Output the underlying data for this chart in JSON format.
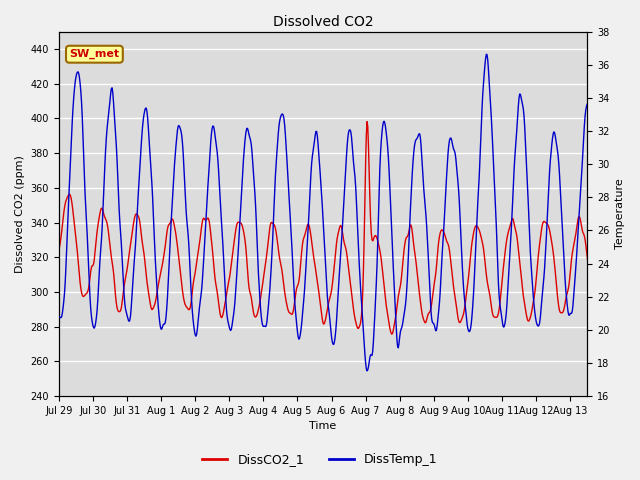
{
  "title": "Dissolved CO2",
  "xlabel": "Time",
  "ylabel_left": "Dissolved CO2 (ppm)",
  "ylabel_right": "Temperature",
  "ylim_left": [
    240,
    450
  ],
  "ylim_right": [
    16,
    38
  ],
  "yticks_left": [
    240,
    260,
    280,
    300,
    320,
    340,
    360,
    380,
    400,
    420,
    440
  ],
  "yticks_right": [
    16,
    18,
    20,
    22,
    24,
    26,
    28,
    30,
    32,
    34,
    36,
    38
  ],
  "xtick_labels": [
    "Jul 29",
    "Jul 30",
    "Jul 31",
    "Aug 1",
    "Aug 2",
    "Aug 3",
    "Aug 4",
    "Aug 5",
    "Aug 6",
    "Aug 7",
    "Aug 8",
    "Aug 9",
    "Aug 10",
    "Aug 11",
    "Aug 12",
    "Aug 13"
  ],
  "line1_color": "#dd0000",
  "line2_color": "#0000cc",
  "line1_label": "DissCO2_1",
  "line2_label": "DissTemp_1",
  "annotation_text": "SW_met",
  "annotation_bg": "#ffff99",
  "annotation_border": "#996600",
  "annotation_text_color": "#cc0000",
  "bg_inner": "#dcdcdc",
  "bg_outer": "#f0f0f0",
  "grid_color": "#ffffff",
  "linewidth": 1.0,
  "title_fontsize": 10,
  "axis_fontsize": 8,
  "tick_fontsize": 7
}
